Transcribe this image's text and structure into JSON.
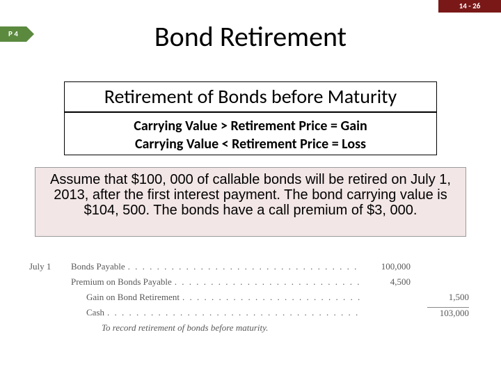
{
  "slideNumber": "14 - 26",
  "badge": "P 4",
  "title": "Bond Retirement",
  "subtitle": "Retirement of Bonds before Maturity",
  "rules": {
    "line1": "Carrying Value > Retirement Price = Gain",
    "line2": "Carrying Value < Retirement Price = Loss"
  },
  "assumption": "Assume that $100, 000 of callable bonds will be retired on July 1, 2013, after the first interest payment. The bond carrying value is $104, 500. The bonds have a call premium of $3, 000.",
  "journal": {
    "date": "July 1",
    "rows": [
      {
        "account": "Bonds Payable",
        "indent": 0,
        "debit": "100,000",
        "credit": ""
      },
      {
        "account": "Premium on Bonds Payable",
        "indent": 0,
        "debit": "4,500",
        "credit": ""
      },
      {
        "account": "Gain on Bond Retirement",
        "indent": 1,
        "debit": "",
        "credit": "1,500"
      },
      {
        "account": "Cash",
        "indent": 1,
        "debit": "",
        "credit": "103,000"
      }
    ],
    "memo": "To record retirement of bonds before maturity."
  },
  "colors": {
    "headerBar": "#7a1818",
    "badge": "#5b8a3f",
    "assumeBg": "#f2e6e6"
  }
}
